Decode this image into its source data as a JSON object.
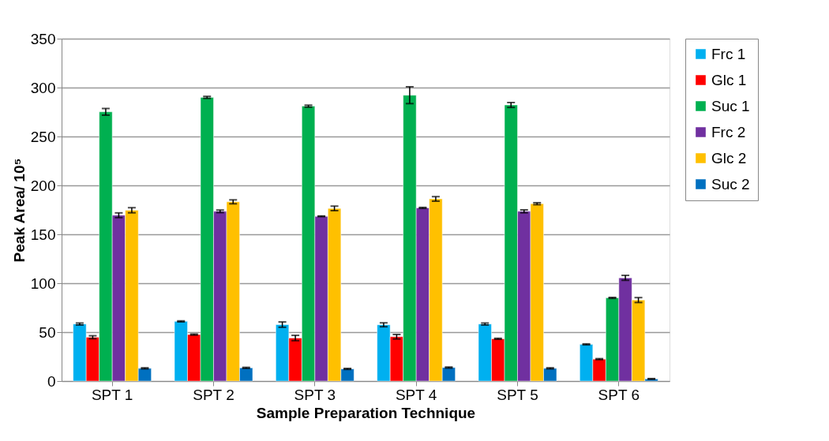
{
  "chart_data": {
    "type": "bar",
    "xlabel": "Sample Preparation Technique",
    "ylabel": "Peak Area/ 10⁵",
    "categories": [
      "SPT 1",
      "SPT 2",
      "SPT 3",
      "SPT 4",
      "SPT 5",
      "SPT 6"
    ],
    "series": [
      {
        "name": "Frc 1",
        "color": "#00b0f0",
        "values": [
          58.3,
          61,
          57.7,
          57.5,
          58.3,
          37.5
        ],
        "errors": [
          1,
          0.5,
          2.7,
          2,
          1,
          0.5
        ]
      },
      {
        "name": "Glc 1",
        "color": "#ff0000",
        "values": [
          44.8,
          47.5,
          44,
          45.3,
          43.2,
          22.4
        ],
        "errors": [
          1.5,
          0.5,
          2.7,
          2.3,
          0.5,
          0.5
        ]
      },
      {
        "name": "Suc 1",
        "color": "#00b050",
        "values": [
          275.2,
          290,
          281,
          292.2,
          282.2,
          85
        ],
        "errors": [
          3.4,
          1,
          1,
          8.6,
          2.5,
          0.5
        ]
      },
      {
        "name": "Frc 2",
        "color": "#7030a0",
        "values": [
          169.5,
          173.5,
          168.4,
          177,
          173.5,
          105.5
        ],
        "errors": [
          2.4,
          1.3,
          0.3,
          0.5,
          1.5,
          2.5
        ]
      },
      {
        "name": "Glc 2",
        "color": "#ffc000",
        "values": [
          174.6,
          183.2,
          176.5,
          186.2,
          181.3,
          82.8
        ],
        "errors": [
          2.6,
          2,
          2.3,
          2.3,
          1,
          2.5
        ]
      },
      {
        "name": "Suc 2",
        "color": "#0070c0",
        "values": [
          13,
          13.5,
          12.4,
          13.8,
          13,
          2.2
        ],
        "errors": [
          0.5,
          0.5,
          0.5,
          0.5,
          0.5,
          0.3
        ]
      }
    ],
    "ylim": [
      0,
      350
    ],
    "yticks": [
      0,
      50,
      100,
      150,
      200,
      250,
      300,
      350
    ],
    "grid": "y",
    "legend": "right"
  }
}
